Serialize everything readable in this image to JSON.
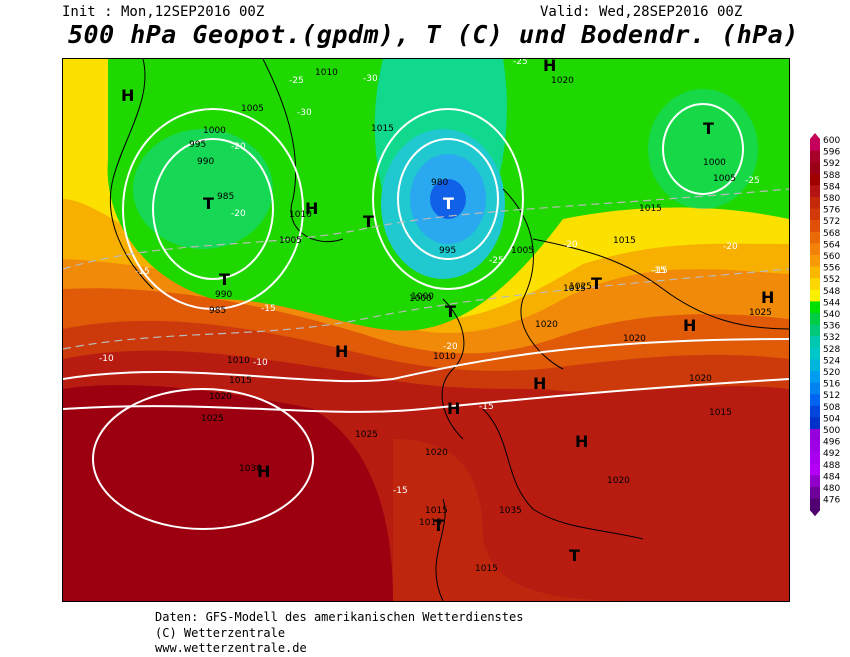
{
  "header": {
    "init": "Init : Mon,12SEP2016 00Z",
    "valid": "Valid: Wed,28SEP2016 00Z",
    "title": "500 hPa Geopot.(gpdm), T (C) und Bodendr. (hPa)"
  },
  "legend": {
    "levels": [
      "600",
      "596",
      "592",
      "588",
      "584",
      "580",
      "576",
      "572",
      "568",
      "564",
      "560",
      "556",
      "552",
      "548",
      "544",
      "540",
      "536",
      "532",
      "528",
      "524",
      "520",
      "516",
      "512",
      "508",
      "504",
      "500",
      "496",
      "492",
      "488",
      "484",
      "480",
      "476"
    ],
    "colors": [
      "#c4005a",
      "#a80028",
      "#9a0018",
      "#a00000",
      "#b41414",
      "#c42a0a",
      "#d43a08",
      "#e05008",
      "#ea6a08",
      "#f28208",
      "#f89a08",
      "#fcb800",
      "#fcd800",
      "#fcf000",
      "#00e000",
      "#00cc44",
      "#00c87a",
      "#00c8b0",
      "#00c8c8",
      "#00b4dc",
      "#009cf0",
      "#0082f0",
      "#0064f0",
      "#0046dc",
      "#0032c8",
      "#9600dc",
      "#a000e6",
      "#aa00f0",
      "#b400f5",
      "#9000c8",
      "#70009a",
      "#500070"
    ]
  },
  "map": {
    "colors": {
      "deep_red": "#9c0010",
      "red": "#b81c10",
      "red_orange": "#cc3a0c",
      "orange": "#e05a08",
      "light_orange": "#f08a08",
      "yellow_orange": "#f8b000",
      "yellow": "#fce000",
      "green": "#1ed800",
      "cyan_green": "#10d88c",
      "cyan": "#20c8d0",
      "light_blue": "#2aa8f0",
      "blue": "#1060e8"
    },
    "isobar_labels": [
      "1010",
      "1020",
      "1005",
      "1015",
      "1000",
      "995",
      "990",
      "985",
      "980",
      "995",
      "1000",
      "1005",
      "1010",
      "1015",
      "1020",
      "1025",
      "1030",
      "1035",
      "1025",
      "1020",
      "1015",
      "1010",
      "1005",
      "1000",
      "990",
      "985",
      "1010",
      "1015",
      "1020",
      "1025",
      "1020",
      "1015",
      "1020",
      "1015",
      "1015",
      "1025",
      "1020",
      "1015",
      "1000",
      "1005",
      "1015"
    ],
    "temp_labels": [
      "-25",
      "-30",
      "-30",
      "-20",
      "-20",
      "-15",
      "-25",
      "-20",
      "-25",
      "-10",
      "-20",
      "-15",
      "-15",
      "-15",
      "-10",
      "-15",
      "-25",
      "-20",
      "-15"
    ],
    "pressure_centers": [
      {
        "label": "H",
        "kind": "high"
      },
      {
        "label": "H",
        "kind": "high"
      },
      {
        "label": "H",
        "kind": "high"
      },
      {
        "label": "H",
        "kind": "high"
      },
      {
        "label": "H",
        "kind": "high"
      },
      {
        "label": "H",
        "kind": "high"
      },
      {
        "label": "H",
        "kind": "high"
      },
      {
        "label": "H",
        "kind": "high"
      },
      {
        "label": "H",
        "kind": "high"
      },
      {
        "label": "H",
        "kind": "high"
      },
      {
        "label": "T",
        "kind": "low"
      },
      {
        "label": "T",
        "kind": "low"
      },
      {
        "label": "T",
        "kind": "low"
      },
      {
        "label": "T",
        "kind": "low"
      },
      {
        "label": "T",
        "kind": "low"
      },
      {
        "label": "T",
        "kind": "low"
      },
      {
        "label": "T",
        "kind": "low"
      },
      {
        "label": "T",
        "kind": "low"
      },
      {
        "label": "T",
        "kind": "low"
      }
    ]
  },
  "footer": {
    "line1": "Daten: GFS-Modell des amerikanischen Wetterdienstes",
    "line2": "(C) Wetterzentrale",
    "line3": "www.wetterzentrale.de"
  }
}
